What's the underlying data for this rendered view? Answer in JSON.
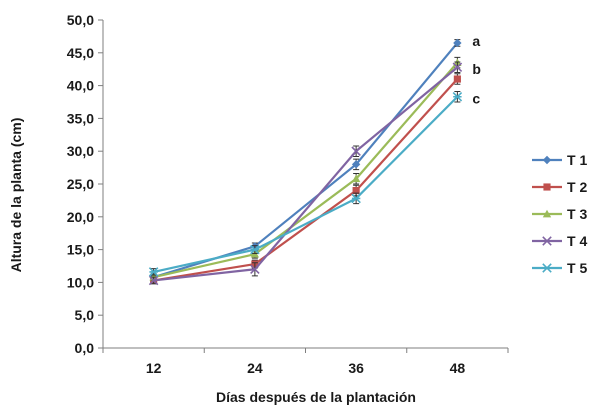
{
  "chart_data": {
    "type": "line",
    "title": "",
    "xlabel": "Días después de la plantación",
    "ylabel": "Altura de la planta (cm)",
    "categories": [
      "12",
      "24",
      "36",
      "48"
    ],
    "ylim": [
      0,
      50
    ],
    "yticks": [
      "0,0",
      "5,0",
      "10,0",
      "15,0",
      "20,0",
      "25,0",
      "30,0",
      "35,0",
      "40,0",
      "45,0",
      "50,0"
    ],
    "grid": false,
    "legend_position": "right",
    "series": [
      {
        "name": "T 1",
        "color": "#4f81bd",
        "marker": "diamond",
        "values": [
          10.8,
          15.5,
          28.0,
          46.5
        ],
        "errors": [
          0.5,
          0.5,
          0.8,
          0.5
        ]
      },
      {
        "name": "T 2",
        "color": "#c0504d",
        "marker": "square",
        "values": [
          10.3,
          12.8,
          24.0,
          41.0
        ],
        "errors": [
          0.5,
          0.6,
          0.8,
          0.8
        ]
      },
      {
        "name": "T 3",
        "color": "#9bbb59",
        "marker": "triangle",
        "values": [
          10.8,
          14.3,
          25.8,
          43.5
        ],
        "errors": [
          0.5,
          0.6,
          0.8,
          0.8
        ]
      },
      {
        "name": "T 4",
        "color": "#8064a2",
        "marker": "x",
        "values": [
          10.3,
          12.0,
          30.0,
          42.8
        ],
        "errors": [
          0.5,
          1.0,
          0.8,
          0.8
        ]
      },
      {
        "name": "T 5",
        "color": "#4bacc6",
        "marker": "star",
        "values": [
          11.6,
          15.0,
          22.8,
          38.3
        ],
        "errors": [
          0.5,
          0.6,
          0.8,
          0.8
        ]
      }
    ],
    "annotations": [
      {
        "text": "a",
        "x": "48",
        "y": 46.8
      },
      {
        "text": "b",
        "x": "48",
        "y": 42.5
      },
      {
        "text": "c",
        "x": "48",
        "y": 38.0
      }
    ]
  }
}
